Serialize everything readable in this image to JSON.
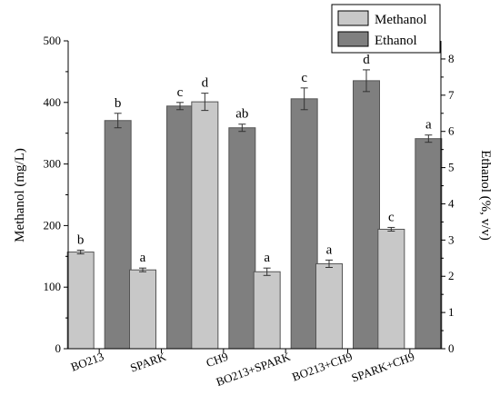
{
  "chart_data": {
    "type": "bar",
    "categories": [
      "BO213",
      "SPARK",
      "CH9",
      "BO213+SPARK",
      "BO213+CH9",
      "SPARK+CH9"
    ],
    "series": [
      {
        "name": "Methanol",
        "axis": "left",
        "color": "#c8c8c8",
        "values": [
          157,
          128,
          401,
          125,
          138,
          194
        ],
        "errors": [
          3,
          3,
          14,
          6,
          6,
          3
        ],
        "labels": [
          "b",
          "a",
          "d",
          "a",
          "a",
          "c"
        ]
      },
      {
        "name": "Ethanol",
        "axis": "right",
        "color": "#7f7f7f",
        "values": [
          6.3,
          6.7,
          6.1,
          6.9,
          7.4,
          5.8
        ],
        "errors": [
          0.2,
          0.1,
          0.1,
          0.3,
          0.3,
          0.1
        ],
        "labels": [
          "b",
          "c",
          "ab",
          "c",
          "d",
          "a"
        ]
      }
    ],
    "y_left": {
      "label": "Methanol (mg/L)",
      "lim": [
        0,
        500
      ],
      "ticks": [
        "0",
        "100",
        "200",
        "300",
        "400",
        "500"
      ]
    },
    "y_right": {
      "label": "Ethanol (%, v/v)",
      "lim": [
        0,
        8.5
      ],
      "ticks": [
        "0",
        "1",
        "2",
        "3",
        "4",
        "5",
        "6",
        "7",
        "8"
      ]
    },
    "legend": "top-right",
    "grid": false
  }
}
